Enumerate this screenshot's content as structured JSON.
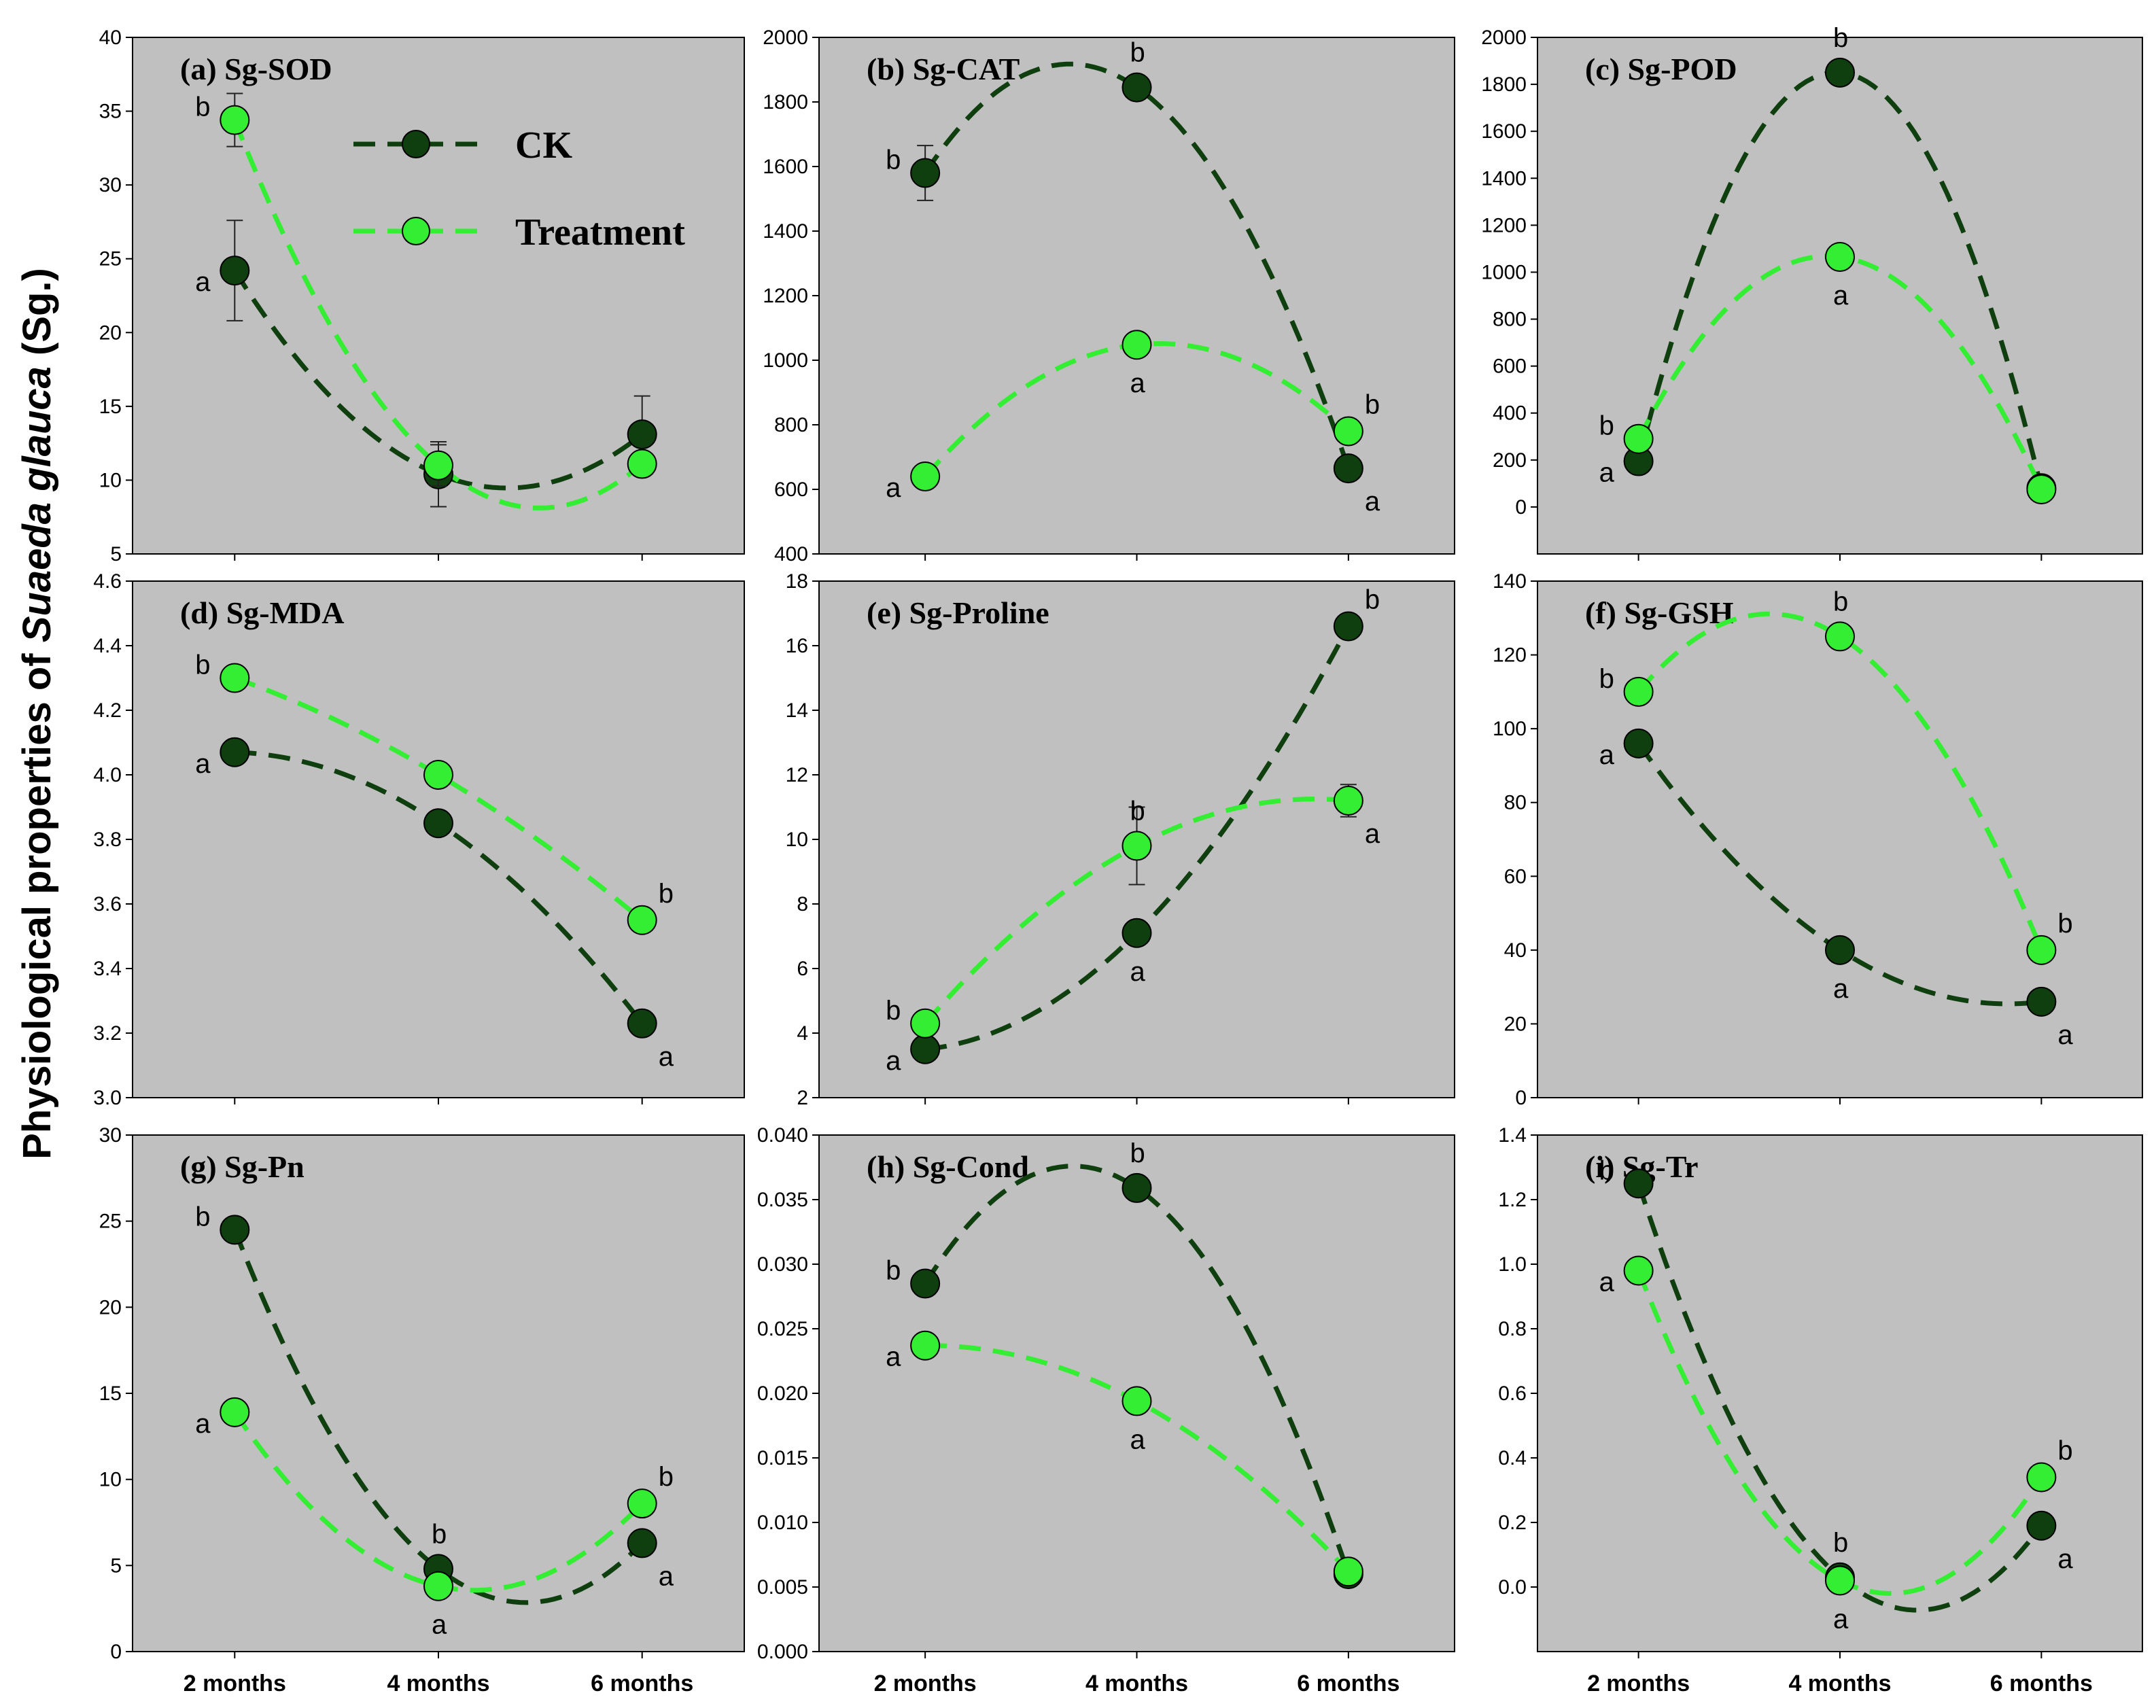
{
  "figure": {
    "ylabel_prefix": "Physiological properties of ",
    "ylabel_species": "Suaeda glauca",
    "ylabel_suffix": " (Sg.)"
  },
  "legend": {
    "placement": "inside panel (a), top-right",
    "entries": [
      {
        "name": "CK",
        "color": "#0f3f0f"
      },
      {
        "name": "Treatment",
        "color": "#33ee33"
      }
    ]
  },
  "colors": {
    "ck": "#0f3f0f",
    "treatment": "#33ee33",
    "plot_bg": "#c0c0c0"
  },
  "chart_data": [
    {
      "id": "a",
      "type": "line",
      "title": "(a) Sg-SOD",
      "categories": [
        "2 months",
        "4 months",
        "6 months"
      ],
      "ylim": [
        5,
        40
      ],
      "yticks": [
        5,
        10,
        15,
        20,
        25,
        30,
        35,
        40
      ],
      "ytick_labels": [
        "5",
        "10",
        "15",
        "20",
        "25",
        "30",
        "35",
        "40"
      ],
      "series": [
        {
          "name": "CK",
          "values": [
            24.2,
            10.4,
            13.1
          ],
          "errors": [
            3.4,
            2.2,
            2.6
          ],
          "sig": [
            "a",
            "",
            ""
          ]
        },
        {
          "name": "Treatment",
          "values": [
            34.4,
            11.0,
            11.1
          ],
          "errors": [
            1.8,
            1.4,
            0
          ],
          "sig": [
            "b",
            "",
            ""
          ]
        }
      ]
    },
    {
      "id": "b",
      "type": "line",
      "title": "(b) Sg-CAT",
      "categories": [
        "2 months",
        "4 months",
        "6 months"
      ],
      "ylim": [
        400,
        2000
      ],
      "yticks": [
        400,
        600,
        800,
        1000,
        1200,
        1400,
        1600,
        1800,
        2000
      ],
      "ytick_labels": [
        "400",
        "600",
        "800",
        "1000",
        "1200",
        "1400",
        "1600",
        "1800",
        "2000"
      ],
      "series": [
        {
          "name": "CK",
          "values": [
            1580,
            1845,
            665
          ],
          "errors": [
            85,
            0,
            0
          ],
          "sig": [
            "b",
            "b",
            "a"
          ]
        },
        {
          "name": "Treatment",
          "values": [
            640,
            1048,
            780
          ],
          "errors": [
            0,
            0,
            0
          ],
          "sig": [
            "a",
            "a",
            "b"
          ]
        }
      ]
    },
    {
      "id": "c",
      "type": "line",
      "title": "(c) Sg-POD",
      "categories": [
        "2 months",
        "4 months",
        "6 months"
      ],
      "ylim": [
        -200,
        2000
      ],
      "yticks": [
        0,
        200,
        400,
        600,
        800,
        1000,
        1200,
        1400,
        1600,
        1800,
        2000
      ],
      "ytick_labels": [
        "0",
        "200",
        "400",
        "600",
        "800",
        "1000",
        "1200",
        "1400",
        "1600",
        "1800",
        "2000"
      ],
      "series": [
        {
          "name": "CK",
          "values": [
            195,
            1850,
            80
          ],
          "errors": [
            0,
            0,
            0
          ],
          "sig": [
            "a",
            "b",
            ""
          ]
        },
        {
          "name": "Treatment",
          "values": [
            290,
            1065,
            75
          ],
          "errors": [
            0,
            0,
            0
          ],
          "sig": [
            "b",
            "a",
            ""
          ]
        }
      ]
    },
    {
      "id": "d",
      "type": "line",
      "title": "(d) Sg-MDA",
      "categories": [
        "2 months",
        "4 months",
        "6 months"
      ],
      "ylim": [
        3.0,
        4.6
      ],
      "yticks": [
        3.0,
        3.2,
        3.4,
        3.6,
        3.8,
        4.0,
        4.2,
        4.4,
        4.6
      ],
      "ytick_labels": [
        "3.0",
        "3.2",
        "3.4",
        "3.6",
        "3.8",
        "4.0",
        "4.2",
        "4.4",
        "4.6"
      ],
      "series": [
        {
          "name": "CK",
          "values": [
            4.07,
            3.85,
            3.23
          ],
          "errors": [
            0,
            0,
            0
          ],
          "sig": [
            "a",
            "",
            "a"
          ]
        },
        {
          "name": "Treatment",
          "values": [
            4.3,
            4.0,
            3.55
          ],
          "errors": [
            0,
            0,
            0
          ],
          "sig": [
            "b",
            "",
            "b"
          ]
        }
      ]
    },
    {
      "id": "e",
      "type": "line",
      "title": "(e) Sg-Proline",
      "categories": [
        "2 months",
        "4 months",
        "6 months"
      ],
      "ylim": [
        2,
        18
      ],
      "yticks": [
        2,
        4,
        6,
        8,
        10,
        12,
        14,
        16,
        18
      ],
      "ytick_labels": [
        "2",
        "4",
        "6",
        "8",
        "10",
        "12",
        "14",
        "16",
        "18"
      ],
      "series": [
        {
          "name": "CK",
          "values": [
            3.5,
            7.1,
            16.6
          ],
          "errors": [
            0,
            0,
            0
          ],
          "sig": [
            "a",
            "a",
            "b"
          ]
        },
        {
          "name": "Treatment",
          "values": [
            4.3,
            9.8,
            11.2
          ],
          "errors": [
            0,
            1.2,
            0.5
          ],
          "sig": [
            "b",
            "b",
            "a"
          ]
        }
      ]
    },
    {
      "id": "f",
      "type": "line",
      "title": "(f) Sg-GSH",
      "categories": [
        "2 months",
        "4 months",
        "6 months"
      ],
      "ylim": [
        0,
        140
      ],
      "yticks": [
        0,
        20,
        40,
        60,
        80,
        100,
        120,
        140
      ],
      "ytick_labels": [
        "0",
        "20",
        "40",
        "60",
        "80",
        "100",
        "120",
        "140"
      ],
      "series": [
        {
          "name": "CK",
          "values": [
            96,
            40,
            26
          ],
          "errors": [
            0,
            0,
            0
          ],
          "sig": [
            "a",
            "a",
            "a"
          ]
        },
        {
          "name": "Treatment",
          "values": [
            110,
            125,
            40
          ],
          "errors": [
            0,
            0,
            0
          ],
          "sig": [
            "b",
            "b",
            "b"
          ]
        }
      ]
    },
    {
      "id": "g",
      "type": "line",
      "title": "(g) Sg-Pn",
      "categories": [
        "2 months",
        "4 months",
        "6 months"
      ],
      "ylim": [
        0,
        30
      ],
      "yticks": [
        0,
        5,
        10,
        15,
        20,
        25,
        30
      ],
      "ytick_labels": [
        "0",
        "5",
        "10",
        "15",
        "20",
        "25",
        "30"
      ],
      "series": [
        {
          "name": "CK",
          "values": [
            24.5,
            4.8,
            6.3
          ],
          "errors": [
            0,
            0,
            0
          ],
          "sig": [
            "b",
            "b",
            "a"
          ]
        },
        {
          "name": "Treatment",
          "values": [
            13.9,
            3.8,
            8.6
          ],
          "errors": [
            0,
            0,
            0
          ],
          "sig": [
            "a",
            "a",
            "b"
          ]
        }
      ]
    },
    {
      "id": "h",
      "type": "line",
      "title": "(h) Sg-Cond",
      "categories": [
        "2 months",
        "4 months",
        "6 months"
      ],
      "ylim": [
        0,
        0.04
      ],
      "yticks": [
        0,
        0.005,
        0.01,
        0.015,
        0.02,
        0.025,
        0.03,
        0.035,
        0.04
      ],
      "ytick_labels": [
        "0.000",
        "0.005",
        "0.010",
        "0.015",
        "0.020",
        "0.025",
        "0.030",
        "0.035",
        "0.040"
      ],
      "series": [
        {
          "name": "CK",
          "values": [
            0.0285,
            0.0359,
            0.006
          ],
          "errors": [
            0,
            0,
            0
          ],
          "sig": [
            "b",
            "b",
            ""
          ]
        },
        {
          "name": "Treatment",
          "values": [
            0.0237,
            0.0194,
            0.0062
          ],
          "errors": [
            0,
            0,
            0
          ],
          "sig": [
            "a",
            "a",
            ""
          ]
        }
      ]
    },
    {
      "id": "i",
      "type": "line",
      "title": "(i) Sg-Tr",
      "categories": [
        "2 months",
        "4 months",
        "6 months"
      ],
      "ylim": [
        -0.2,
        1.4
      ],
      "yticks": [
        0,
        0.2,
        0.4,
        0.6,
        0.8,
        1.0,
        1.2,
        1.4
      ],
      "ytick_labels": [
        "0.0",
        "0.2",
        "0.4",
        "0.6",
        "0.8",
        "1.0",
        "1.2",
        "1.4"
      ],
      "series": [
        {
          "name": "CK",
          "values": [
            1.25,
            0.03,
            0.19
          ],
          "errors": [
            0,
            0,
            0
          ],
          "sig": [
            "b",
            "b",
            "a"
          ]
        },
        {
          "name": "Treatment",
          "values": [
            0.98,
            0.02,
            0.34
          ],
          "errors": [
            0,
            0,
            0
          ],
          "sig": [
            "a",
            "a",
            "b"
          ]
        }
      ]
    }
  ]
}
